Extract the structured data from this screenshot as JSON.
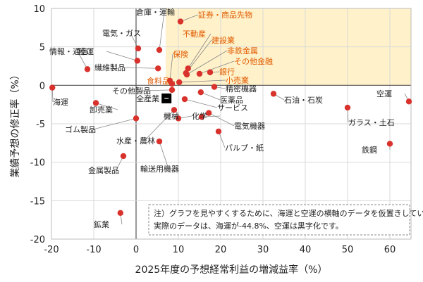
{
  "chart_data": {
    "type": "scatter",
    "xlabel": "2025年度の予想経常利益の増減益率（%）",
    "ylabel": "業績予想の修正率（%）",
    "xlim": [
      -20,
      65
    ],
    "ylim": [
      -20,
      10
    ],
    "xticks": [
      -20,
      -10,
      0,
      10,
      20,
      30,
      40,
      50,
      60
    ],
    "yticks": [
      10,
      5,
      0,
      -5,
      -10,
      -15,
      -20
    ],
    "grid": true,
    "highlight_region": {
      "x": [
        7,
        65
      ],
      "y": [
        0,
        10
      ],
      "color": "#fff1c9"
    },
    "colors": {
      "point": "#d9312b",
      "highlight_label": "#e05a00",
      "leader": "#888888",
      "market": "#000000"
    },
    "points": [
      {
        "name": "証券・商品先物",
        "x": 10.5,
        "y": 8.3,
        "highlight": true
      },
      {
        "name": "倉庫・運輸",
        "x": 5.5,
        "y": 4.6
      },
      {
        "name": "電気・ガス",
        "x": 0.5,
        "y": 4.8
      },
      {
        "name": "陸運",
        "x": 0.3,
        "y": 3.2
      },
      {
        "name": "情報・通信",
        "x": -11.5,
        "y": 2.1
      },
      {
        "name": "繊維製品",
        "x": 5.2,
        "y": 2.2
      },
      {
        "name": "不動産",
        "x": 12.3,
        "y": 2.2,
        "highlight": true
      },
      {
        "name": "保険",
        "x": 8.0,
        "y": 0.6,
        "highlight": true
      },
      {
        "name": "建設業",
        "x": 11.8,
        "y": 1.6,
        "highlight": true
      },
      {
        "name": "非鉄金属",
        "x": 12.0,
        "y": 1.4,
        "highlight": true
      },
      {
        "name": "その他金融",
        "x": 15.0,
        "y": 1.5,
        "highlight": true
      },
      {
        "name": "銀行",
        "x": 17.5,
        "y": 1.7,
        "highlight": true
      },
      {
        "name": "食料品",
        "x": 8.5,
        "y": 0.2,
        "highlight": true
      },
      {
        "name": "小売業",
        "x": 10.2,
        "y": 0.4,
        "highlight": true
      },
      {
        "name": "その他製品",
        "x": 8.5,
        "y": -0.6
      },
      {
        "name": "精密機器",
        "x": 18.5,
        "y": -0.2
      },
      {
        "name": "海運",
        "x": -19.8,
        "y": -0.3
      },
      {
        "name": "医薬品",
        "x": 15.3,
        "y": -0.9
      },
      {
        "name": "サービス",
        "x": 11.5,
        "y": -1.8
      },
      {
        "name": "卸売業",
        "x": -9.5,
        "y": -2.3
      },
      {
        "name": "石油・石炭",
        "x": 32.5,
        "y": -1.1
      },
      {
        "name": "空運",
        "x": 64.5,
        "y": -2.1
      },
      {
        "name": "ゴム製品",
        "x": 0.0,
        "y": -4.3
      },
      {
        "name": "水産・農林",
        "x": 9.0,
        "y": -3.2
      },
      {
        "name": "機械",
        "x": 10.0,
        "y": -4.3
      },
      {
        "name": "化学",
        "x": 15.5,
        "y": -4.1
      },
      {
        "name": "電気機器",
        "x": 17.2,
        "y": -3.6
      },
      {
        "name": "パルプ・紙",
        "x": 19.5,
        "y": -6.0
      },
      {
        "name": "ガラス・土石",
        "x": 50.0,
        "y": -2.9
      },
      {
        "name": "輸送用機器",
        "x": 5.5,
        "y": -7.3
      },
      {
        "name": "鉄鋼",
        "x": 60.0,
        "y": -7.6
      },
      {
        "name": "金属製品",
        "x": -3.0,
        "y": -9.2
      },
      {
        "name": "鉱業",
        "x": -3.7,
        "y": -16.6
      }
    ],
    "market": {
      "name": "全産業",
      "x": 7.2,
      "y": -1.7
    },
    "note": {
      "line1": "注）グラフを見やすくするために、海運と空運の横軸のデータを仮置きしています。",
      "line2": "実際のデータは、海運が-44.8%、空運は黒字化です。"
    }
  }
}
